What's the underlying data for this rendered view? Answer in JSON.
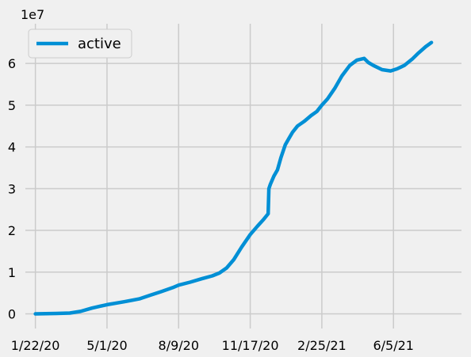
{
  "chart_data": {
    "type": "line",
    "title": "",
    "xlabel": "",
    "ylabel": "",
    "y_scale_label": "1e7",
    "y_unit_multiplier": 10000000,
    "legend": {
      "placement": "top-left",
      "entries": [
        "active"
      ]
    },
    "grid": true,
    "x_ticks": [
      "1/22/20",
      "5/1/20",
      "8/9/20",
      "11/17/20",
      "2/25/21",
      "6/5/21"
    ],
    "y_ticks": [
      0,
      1,
      2,
      3,
      4,
      5,
      6
    ],
    "xlim": [
      "2020-01-08",
      "2021-09-08"
    ],
    "ylim": [
      -0.35,
      6.95
    ],
    "series": [
      {
        "name": "active",
        "color": "#008fd5",
        "x": [
          "2020-01-22",
          "2020-02-20",
          "2020-03-10",
          "2020-03-25",
          "2020-04-10",
          "2020-05-01",
          "2020-05-25",
          "2020-06-15",
          "2020-07-01",
          "2020-07-15",
          "2020-08-01",
          "2020-08-09",
          "2020-08-25",
          "2020-09-10",
          "2020-09-25",
          "2020-10-05",
          "2020-10-15",
          "2020-10-25",
          "2020-11-05",
          "2020-11-17",
          "2020-11-27",
          "2020-12-05",
          "2020-12-12",
          "2020-12-13",
          "2020-12-15",
          "2020-12-20",
          "2020-12-25",
          "2020-12-30",
          "2021-01-05",
          "2021-01-10",
          "2021-01-15",
          "2021-01-22",
          "2021-02-01",
          "2021-02-10",
          "2021-02-18",
          "2021-02-25",
          "2021-03-05",
          "2021-03-15",
          "2021-03-25",
          "2021-04-05",
          "2021-04-15",
          "2021-04-25",
          "2021-05-01",
          "2021-05-08",
          "2021-05-20",
          "2021-06-01",
          "2021-06-10",
          "2021-06-20",
          "2021-07-01",
          "2021-07-10",
          "2021-07-20",
          "2021-07-28"
        ],
        "values": [
          0.0,
          0.01,
          0.02,
          0.06,
          0.14,
          0.22,
          0.29,
          0.36,
          0.45,
          0.53,
          0.63,
          0.69,
          0.76,
          0.84,
          0.91,
          0.98,
          1.1,
          1.3,
          1.6,
          1.9,
          2.1,
          2.25,
          2.4,
          3.0,
          3.1,
          3.3,
          3.45,
          3.75,
          4.05,
          4.2,
          4.35,
          4.5,
          4.62,
          4.75,
          4.85,
          5.0,
          5.15,
          5.4,
          5.7,
          5.95,
          6.08,
          6.12,
          6.02,
          5.95,
          5.85,
          5.82,
          5.87,
          5.95,
          6.1,
          6.25,
          6.4,
          6.5
        ]
      }
    ]
  }
}
